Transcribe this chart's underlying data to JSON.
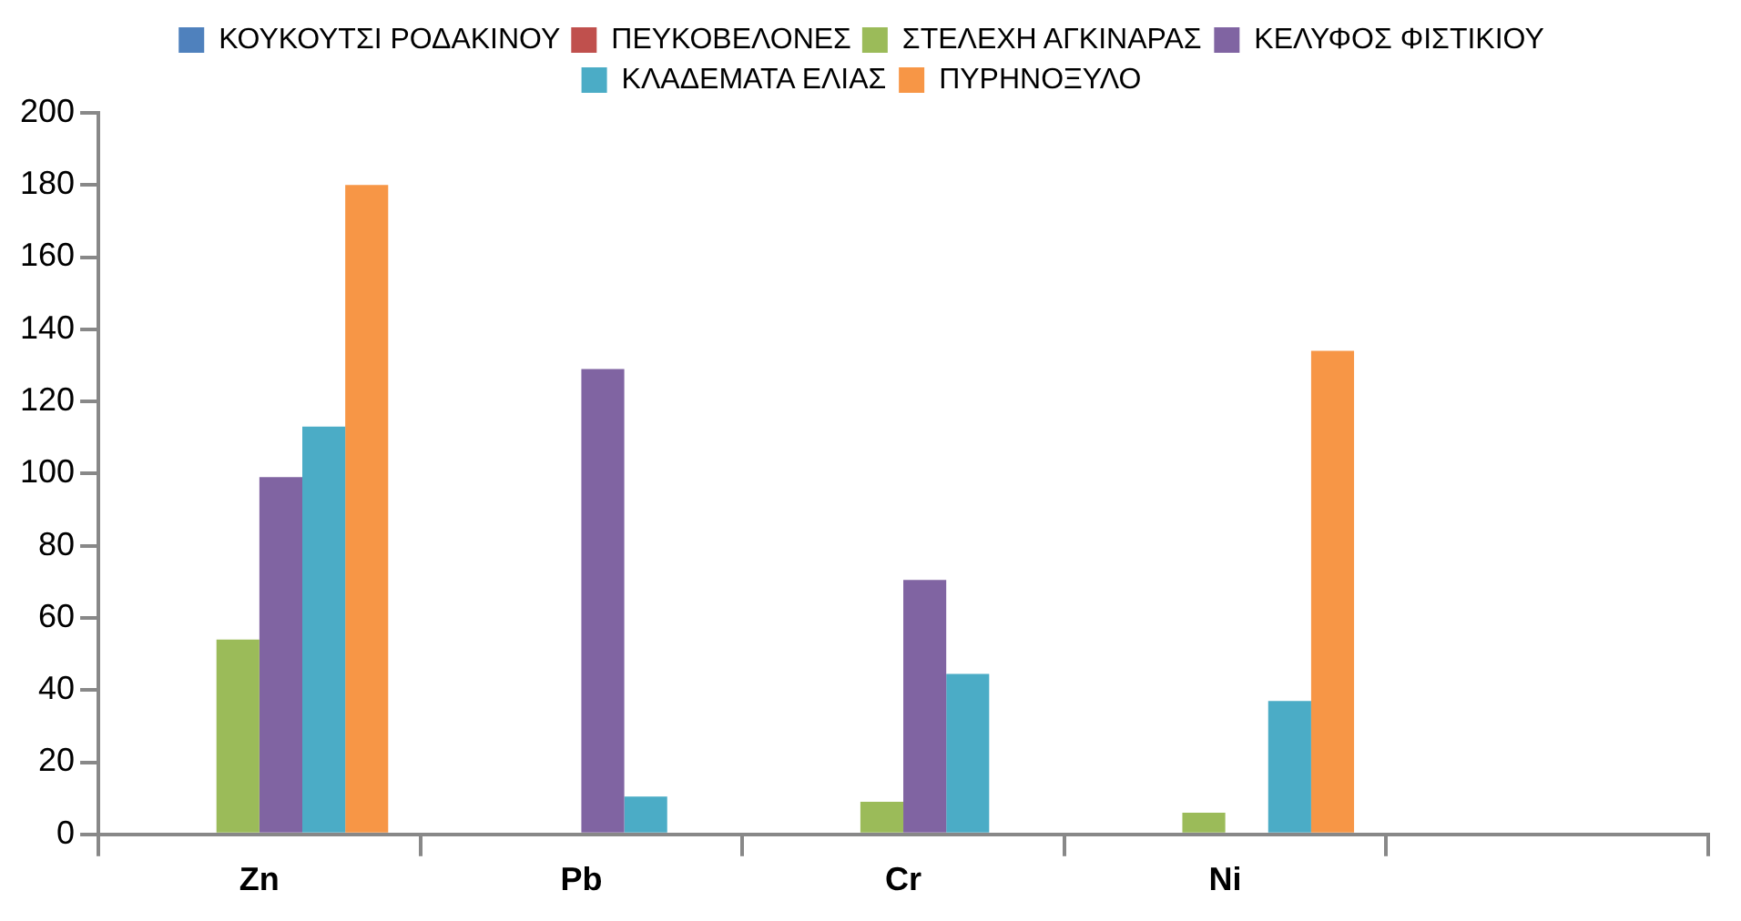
{
  "chart_data": {
    "type": "bar",
    "categories": [
      "Zn",
      "Pb",
      "Cr",
      "Ni",
      null
    ],
    "series": [
      {
        "name": "ΚΟΥΚΟΥΤΣΙ ΡΟΔΑΚΙΝΟΥ",
        "color": "#4f81bd",
        "values": [
          null,
          null,
          null,
          null,
          null
        ]
      },
      {
        "name": "ΠΕΥΚΟΒΕΛΟΝΕΣ",
        "color": "#c0504d",
        "values": [
          null,
          null,
          null,
          null,
          null
        ]
      },
      {
        "name": "ΣΤΕΛΕΧΗ ΑΓΚΙΝΑΡΑΣ",
        "color": "#9bbb59",
        "values": [
          54,
          null,
          9,
          6,
          null
        ]
      },
      {
        "name": "ΚΕΛΥΦΟΣ ΦΙΣΤΙΚΙΟΥ",
        "color": "#8064a2",
        "values": [
          99,
          129,
          70.5,
          null,
          null
        ]
      },
      {
        "name": "ΚΛΑΔΕΜΑΤΑ ΕΛΙΑΣ",
        "color": "#4bacc6",
        "values": [
          113,
          10.5,
          44.5,
          37,
          null
        ]
      },
      {
        "name": "ΠΥΡΗΝΟΞΥΛΟ",
        "color": "#f79646",
        "values": [
          180,
          null,
          null,
          134,
          null
        ]
      }
    ],
    "ylim": [
      0,
      200
    ],
    "yticks": [
      0,
      20,
      40,
      60,
      80,
      100,
      120,
      140,
      160,
      180,
      200
    ],
    "grid": false,
    "legend": "top"
  }
}
